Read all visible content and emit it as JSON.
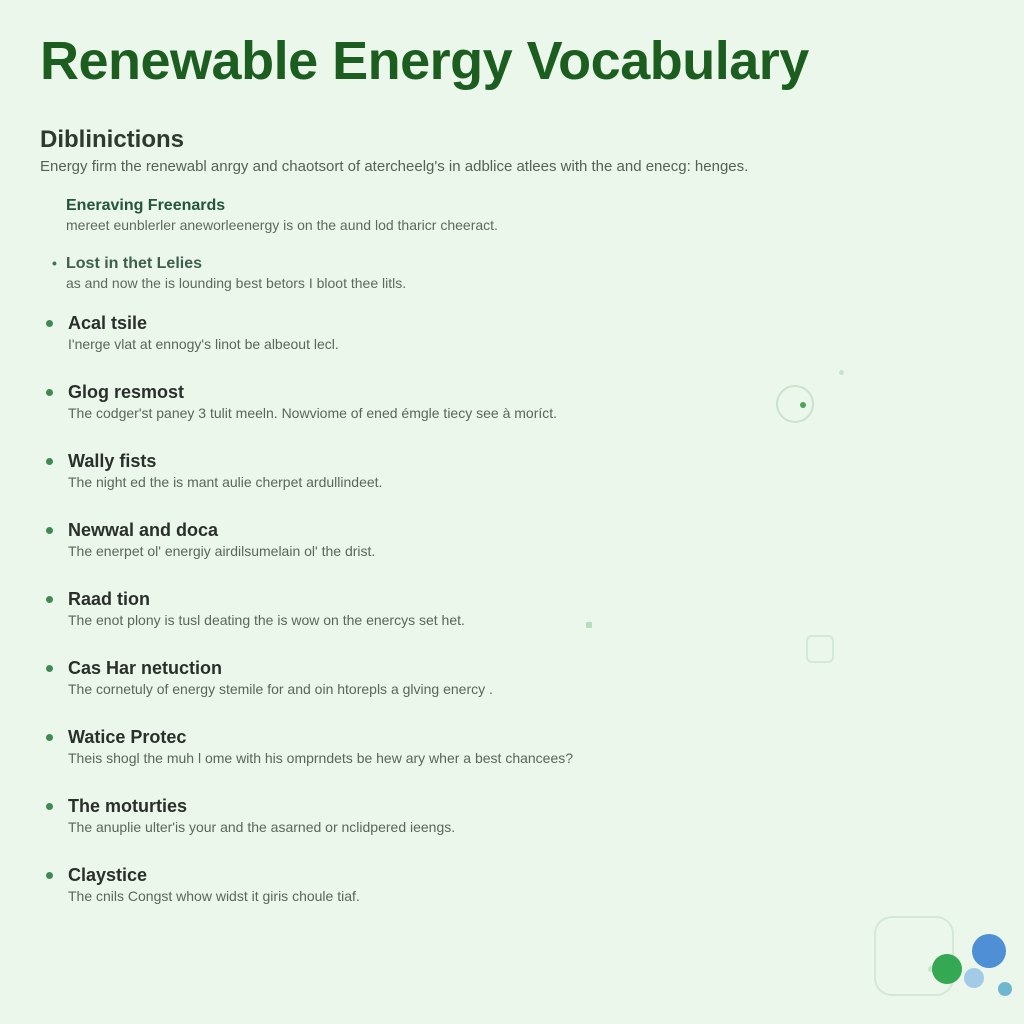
{
  "colors": {
    "background": "#ecf7eb",
    "title": "#1b5e20",
    "heading": "#2e3a2e",
    "body_text": "#5a665b",
    "term_text": "#2b2f2b",
    "bullet": "#3f8a52",
    "callout_term": "#24543a",
    "deco_outline": "#c9e3cd",
    "deco_green_dot": "#4aa35a",
    "blob_green": "#34a853",
    "blob_blue": "#4f8fd6",
    "blob_lightblue": "#a3cbe8",
    "blob_teal": "#6fb6d0"
  },
  "typography": {
    "title_size_pt": 40,
    "title_weight": 700,
    "section_heading_size_pt": 18,
    "term_size_pt": 14,
    "term_weight": 700,
    "def_size_pt": 11,
    "font_family": "Segoe UI"
  },
  "title": "Renewable Energy Vocabulary",
  "section": {
    "heading": "Diblinictions",
    "subtext": "Energy firm the renewabl anrgy and chaotsort of atercheelg's in adblice atlees with the and enecg: henges."
  },
  "callouts": [
    {
      "term": "Eneraving Freenards",
      "def": "mereet eunblerler aneworleenergy is on the aund lod tharicr cheeract."
    },
    {
      "term": "Lost in thet Lelies",
      "def": "as and now the is lounding best betors I bloot thee litls."
    }
  ],
  "entries": [
    {
      "term": "Acal tsile",
      "def": "I'nerge vlat at ennogy's linot be albeout lecl."
    },
    {
      "term": "Glog resmost",
      "def": "The codger'st paney 3 tulit meeln. Nowviome of ened émgle tiecy see à moríct."
    },
    {
      "term": "Wally fists",
      "def": "The night ed the is mant aulie cherpet ardullindeet."
    },
    {
      "term": "Newwal and doca",
      "def": "The enerpet ol' energiy airdilsumelain ol' the drist."
    },
    {
      "term": "Raad tion",
      "def": "The enot plony is tusl deating the is wow on the enercys set het."
    },
    {
      "term": "Cas Har netuction",
      "def": "The cornetuly of energy stemile for and oin htorepls a glving enercy ."
    },
    {
      "term": "Watice Protec",
      "def": "Theis shogl the muh l ome with his omprndets be hew ary wher a best chancees?"
    },
    {
      "term": "The moturties",
      "def": "The anuplie ulter'is your and the asarned or nclidpered ieengs."
    },
    {
      "term": "Claystice",
      "def": "The cnils Congst whow widst it giris choule tiaf."
    }
  ]
}
